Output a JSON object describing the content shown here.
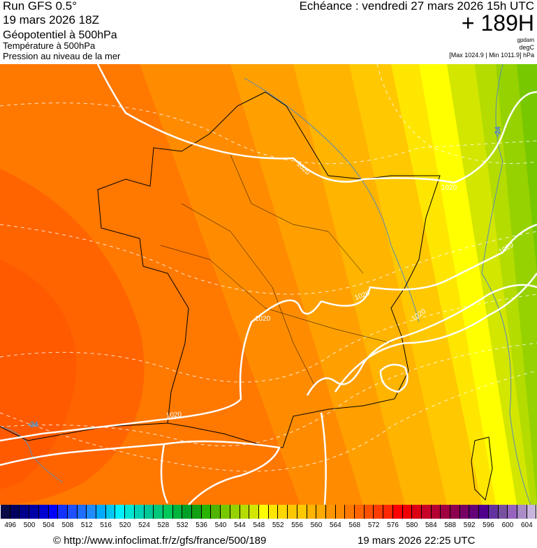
{
  "header": {
    "run": "Run GFS 0.5°",
    "run_date": "19 mars 2026 18Z",
    "layer1": "Géopotentiel à 500hPa",
    "layer2": "Température à 500hPa",
    "layer3": "Pression au niveau de la mer",
    "valid_time": "Echéance : vendredi 27 mars 2026 15h UTC",
    "lead": "+ 189H",
    "unit1": "gpdam",
    "unit2": "degC",
    "pressure_range": "[Max 1024.9 | Min 1011.9] hPa"
  },
  "map": {
    "isobar_labels": [
      "1020",
      "1020",
      "1020",
      "1020",
      "1020",
      "1020",
      "1020"
    ],
    "temperature_labels": [
      "-24",
      "-24"
    ],
    "isobar_color": "#ffffff",
    "temperature_line_color": "#5a8cb4"
  },
  "legend": {
    "labels": [
      "496",
      "500",
      "504",
      "508",
      "512",
      "516",
      "520",
      "524",
      "528",
      "532",
      "536",
      "540",
      "544",
      "548",
      "552",
      "556",
      "560",
      "564",
      "568",
      "572",
      "576",
      "580",
      "584",
      "588",
      "592",
      "596",
      "600",
      "604"
    ],
    "colors": [
      "#0a0a46",
      "#000060",
      "#00008c",
      "#0000a8",
      "#0000d0",
      "#0000ff",
      "#1432ff",
      "#1e50ff",
      "#1e6eff",
      "#1e8cff",
      "#00aaff",
      "#00c8f0",
      "#00f0ff",
      "#00e6d2",
      "#00d2b4",
      "#00c896",
      "#00c878",
      "#00c85a",
      "#00b43c",
      "#00a028",
      "#14a014",
      "#28b400",
      "#50b400",
      "#78c800",
      "#96d200",
      "#b4dc00",
      "#d2e600",
      "#ffff00",
      "#ffe600",
      "#ffd700",
      "#ffc800",
      "#ffc800",
      "#ffb400",
      "#ffaa00",
      "#ff9600",
      "#ff8c00",
      "#ff7800",
      "#ff6400",
      "#ff5000",
      "#ff3c00",
      "#ff2800",
      "#ff0000",
      "#f00000",
      "#dc0014",
      "#c80028",
      "#b40032",
      "#a00041",
      "#8c0050",
      "#780064",
      "#640078",
      "#50008c",
      "#6432a0",
      "#7850a0",
      "#9664be",
      "#aa8cc8",
      "#c8b4dc"
    ]
  },
  "footer": {
    "source": "© http://www.infoclimat.fr/z/gfs/france/500/189",
    "generated": "19 mars 2026 22:25 UTC"
  }
}
